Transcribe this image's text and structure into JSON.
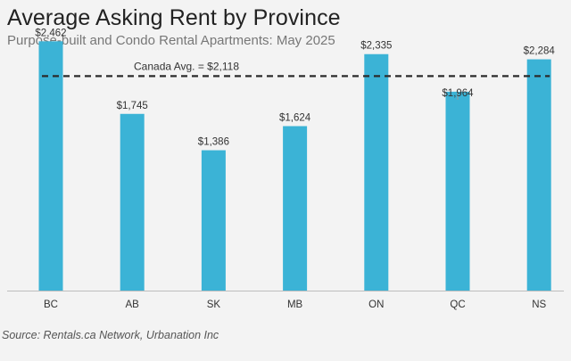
{
  "header": {
    "title": "Average Asking Rent by Province",
    "subtitle": "Purpose-built and Condo Rental Apartments: May 2025"
  },
  "footer": {
    "source": "Source: Rentals.ca Network, Urbanation Inc"
  },
  "colors": {
    "bar": "#3bb3d6",
    "reference_line": "#2b2b2b",
    "axis": "#bdbdbd",
    "text": "#333333"
  },
  "chart_data": {
    "type": "bar",
    "categories": [
      "BC",
      "AB",
      "SK",
      "MB",
      "ON",
      "QC",
      "NS"
    ],
    "values": [
      2462,
      1745,
      1386,
      1624,
      2335,
      1964,
      2284
    ],
    "value_labels": [
      "$2,462",
      "$1,745",
      "$1,386",
      "$1,624",
      "$2,335",
      "$1,964",
      "$2,284"
    ],
    "title": "Average Asking Rent by Province",
    "subtitle": "Purpose-built and Condo Rental Apartments: May 2025",
    "xlabel": "",
    "ylabel": "",
    "ylim": [
      0,
      2500
    ],
    "grid": false,
    "reference_line": {
      "label": "Canada Avg. = $2,118",
      "value": 2118,
      "style": "dashed"
    }
  }
}
